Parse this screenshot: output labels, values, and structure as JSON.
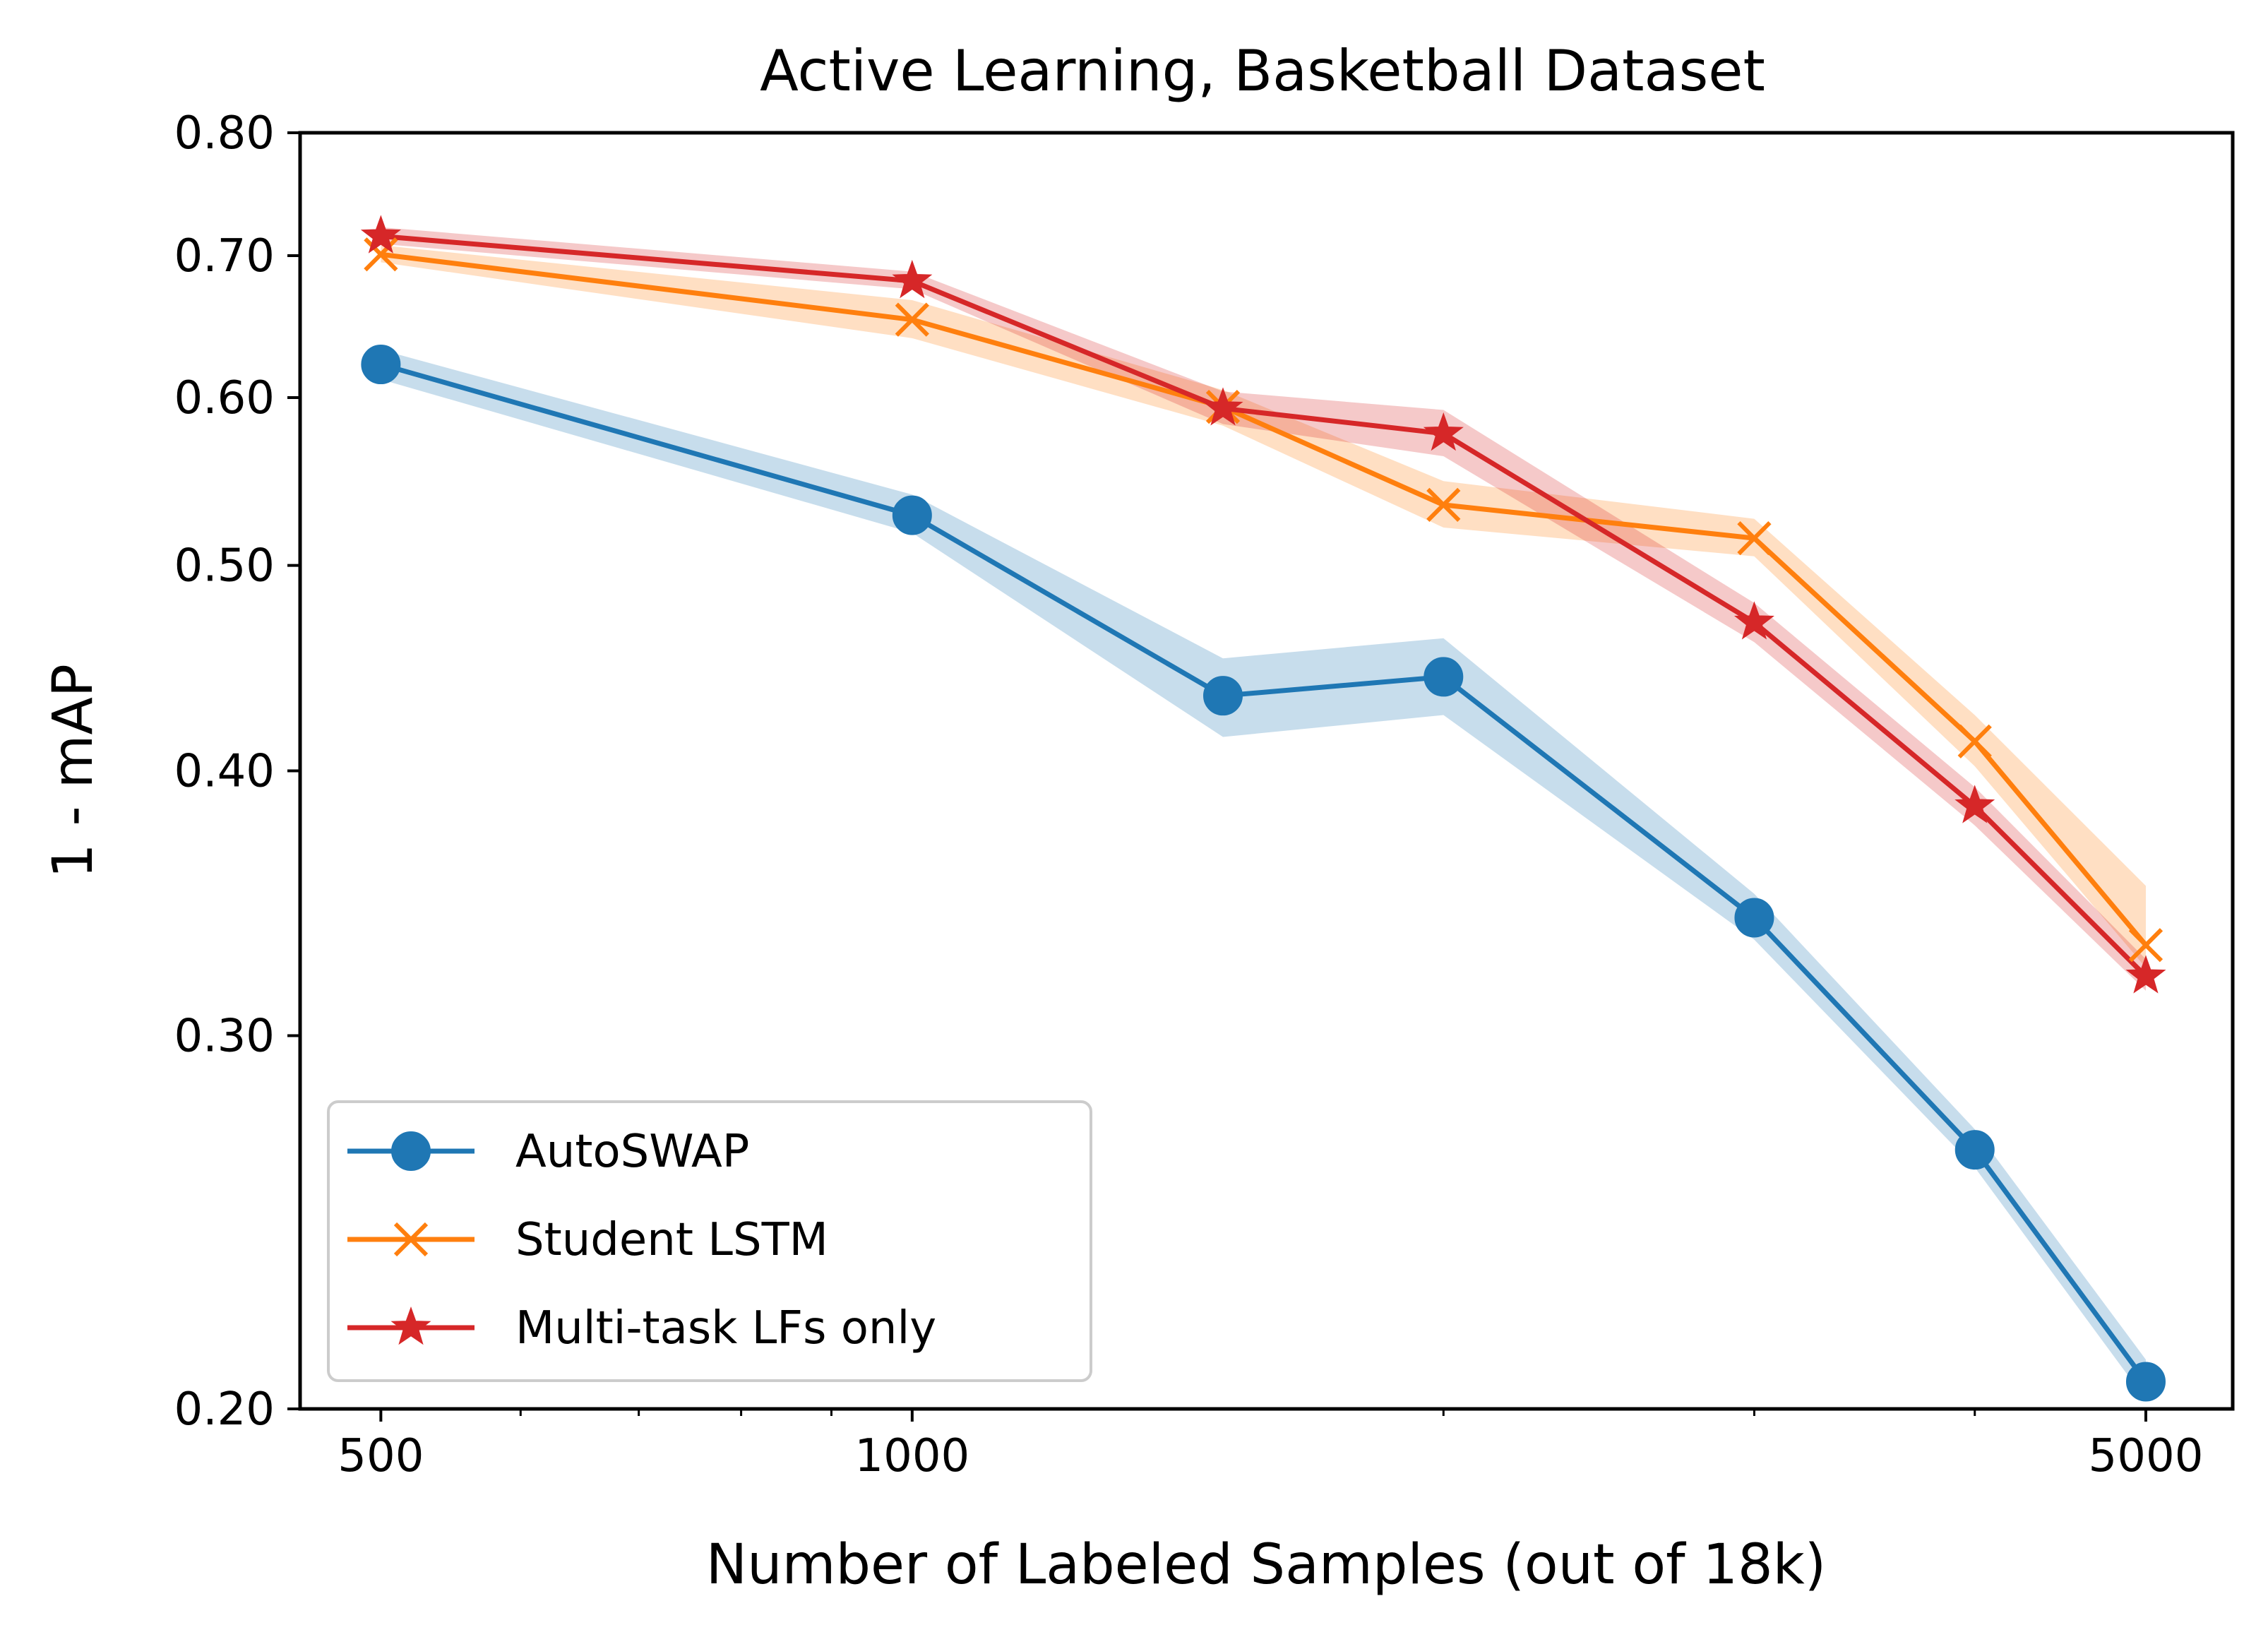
{
  "chart_data": {
    "type": "line",
    "title": "Active Learning, Basketball Dataset",
    "xlabel": "Number of Labeled Samples (out of 18k)",
    "ylabel": "1 - mAP",
    "xscale": "log",
    "yscale": "log",
    "xlim": [
      450,
      5600
    ],
    "ylim": [
      0.2,
      0.8
    ],
    "xticks": [
      {
        "value": 500,
        "label": "500"
      },
      {
        "value": 1000,
        "label": "1000"
      },
      {
        "value": 5000,
        "label": "5000"
      }
    ],
    "xminor_ticks": [
      600,
      700,
      800,
      900,
      2000,
      3000,
      4000
    ],
    "yticks": [
      {
        "value": 0.2,
        "label": "0.20"
      },
      {
        "value": 0.3,
        "label": "0.30"
      },
      {
        "value": 0.4,
        "label": "0.40"
      },
      {
        "value": 0.5,
        "label": "0.50"
      },
      {
        "value": 0.6,
        "label": "0.60"
      },
      {
        "value": 0.7,
        "label": "0.70"
      },
      {
        "value": 0.8,
        "label": "0.80"
      }
    ],
    "x": [
      500,
      1000,
      1500,
      2000,
      3000,
      4000,
      5000
    ],
    "legend_position": "lower-left",
    "grid": false,
    "series": [
      {
        "name": "AutoSWAP",
        "color": "#1f77b4",
        "marker": "circle",
        "values": [
          0.622,
          0.528,
          0.434,
          0.443,
          0.341,
          0.265,
          0.206
        ],
        "lower": [
          0.612,
          0.518,
          0.415,
          0.425,
          0.333,
          0.26,
          0.202
        ],
        "upper": [
          0.632,
          0.54,
          0.452,
          0.462,
          0.35,
          0.271,
          0.211
        ]
      },
      {
        "name": "Student LSTM",
        "color": "#ff7f0e",
        "marker": "x",
        "values": [
          0.701,
          0.653,
          0.594,
          0.534,
          0.515,
          0.413,
          0.331
        ],
        "lower": [
          0.695,
          0.64,
          0.582,
          0.521,
          0.505,
          0.402,
          0.323
        ],
        "upper": [
          0.708,
          0.667,
          0.605,
          0.548,
          0.526,
          0.425,
          0.353
        ]
      },
      {
        "name": "Multi-task LFs only",
        "color": "#d62728",
        "marker": "star",
        "values": [
          0.715,
          0.681,
          0.593,
          0.577,
          0.47,
          0.385,
          0.32
        ],
        "lower": [
          0.709,
          0.675,
          0.583,
          0.563,
          0.46,
          0.377,
          0.315
        ],
        "upper": [
          0.722,
          0.688,
          0.604,
          0.592,
          0.48,
          0.393,
          0.326
        ]
      }
    ]
  }
}
